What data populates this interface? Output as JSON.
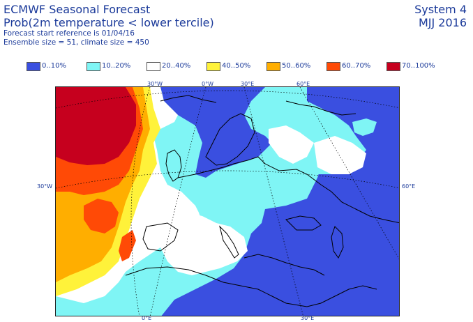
{
  "header": {
    "title": "ECMWF Seasonal Forecast",
    "subtitle": "Prob(2m temperature < lower tercile)",
    "start_reference": "Forecast start reference is 01/04/16",
    "ensemble": "Ensemble size = 51, climate size = 450",
    "system": "System 4",
    "season": "MJJ 2016"
  },
  "legend": {
    "items": [
      {
        "label": "0..10%",
        "color": "#3a4fe0"
      },
      {
        "label": "10..20%",
        "color": "#7ff5f5"
      },
      {
        "label": "20..40%",
        "color": "#ffffff"
      },
      {
        "label": "40..50%",
        "color": "#fff23a"
      },
      {
        "label": "50..60%",
        "color": "#ffae00"
      },
      {
        "label": "60..70%",
        "color": "#ff4a06"
      },
      {
        "label": "70..100%",
        "color": "#c6001e"
      }
    ]
  },
  "map": {
    "grid_labels": {
      "top": [
        "30°W",
        "0°W",
        "30°E",
        "60°E"
      ],
      "left": [
        "30°W"
      ],
      "right": [
        "60°E"
      ],
      "bottom": [
        "0°E",
        "30°E"
      ]
    }
  }
}
